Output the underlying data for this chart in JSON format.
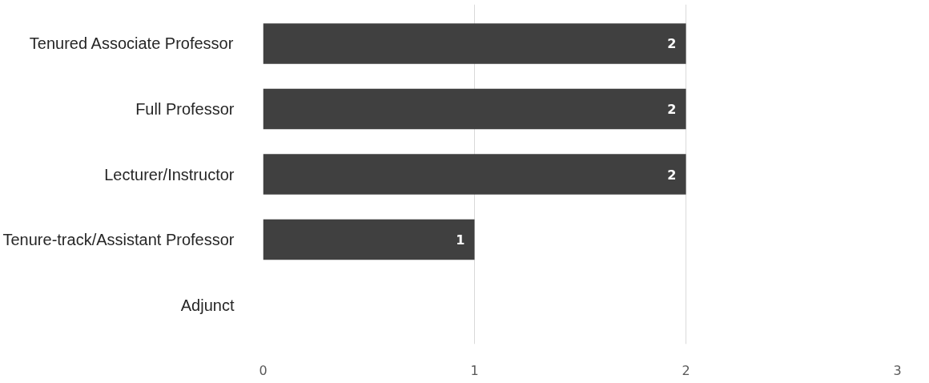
{
  "chart_data": {
    "type": "bar",
    "orientation": "horizontal",
    "categories": [
      "Tenured Associate Professor",
      "Full Professor",
      "Lecturer/Instructor",
      "Tenure-track/Assistant Professor",
      "Adjunct"
    ],
    "values": [
      2,
      2,
      2,
      1,
      0
    ],
    "value_labels": [
      "2",
      "2",
      "2",
      "1",
      null
    ],
    "color": "#404040",
    "xlim": [
      0,
      3
    ],
    "xticks": [
      0,
      1,
      2,
      3
    ],
    "grid": "x"
  }
}
